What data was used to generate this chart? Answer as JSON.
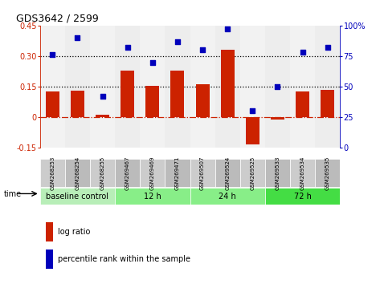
{
  "title": "GDS3642 / 2599",
  "samples": [
    "GSM268253",
    "GSM268254",
    "GSM268255",
    "GSM269467",
    "GSM269469",
    "GSM269471",
    "GSM269507",
    "GSM269524",
    "GSM269525",
    "GSM269533",
    "GSM269534",
    "GSM269535"
  ],
  "log_ratio": [
    0.125,
    0.13,
    0.01,
    0.23,
    0.155,
    0.23,
    0.16,
    0.33,
    -0.135,
    -0.01,
    0.125,
    0.135
  ],
  "percentile_rank": [
    76,
    90,
    42,
    82,
    70,
    87,
    80,
    97,
    30,
    50,
    78,
    82
  ],
  "ylim_left": [
    -0.15,
    0.45
  ],
  "ylim_right": [
    0,
    100
  ],
  "yticks_left": [
    -0.15,
    0,
    0.15,
    0.3,
    0.45
  ],
  "yticks_right": [
    0,
    25,
    50,
    75,
    100
  ],
  "hlines": [
    0.15,
    0.3
  ],
  "bar_color": "#cc2200",
  "dot_color": "#0000bb",
  "zero_line_color": "#cc2200",
  "bg_color": "#ffffff",
  "plot_bg": "#ffffff",
  "group_defs": [
    {
      "label": "baseline control",
      "start": 0,
      "end": 3,
      "color": "#b8eeb8"
    },
    {
      "label": "12 h",
      "start": 3,
      "end": 6,
      "color": "#88ee88"
    },
    {
      "label": "24 h",
      "start": 6,
      "end": 9,
      "color": "#88ee88"
    },
    {
      "label": "72 h",
      "start": 9,
      "end": 12,
      "color": "#44dd44"
    }
  ],
  "col_colors": [
    "#cccccc",
    "#bbbbbb"
  ],
  "legend_items": [
    {
      "label": "log ratio",
      "color": "#cc2200"
    },
    {
      "label": "percentile rank within the sample",
      "color": "#0000bb"
    }
  ]
}
